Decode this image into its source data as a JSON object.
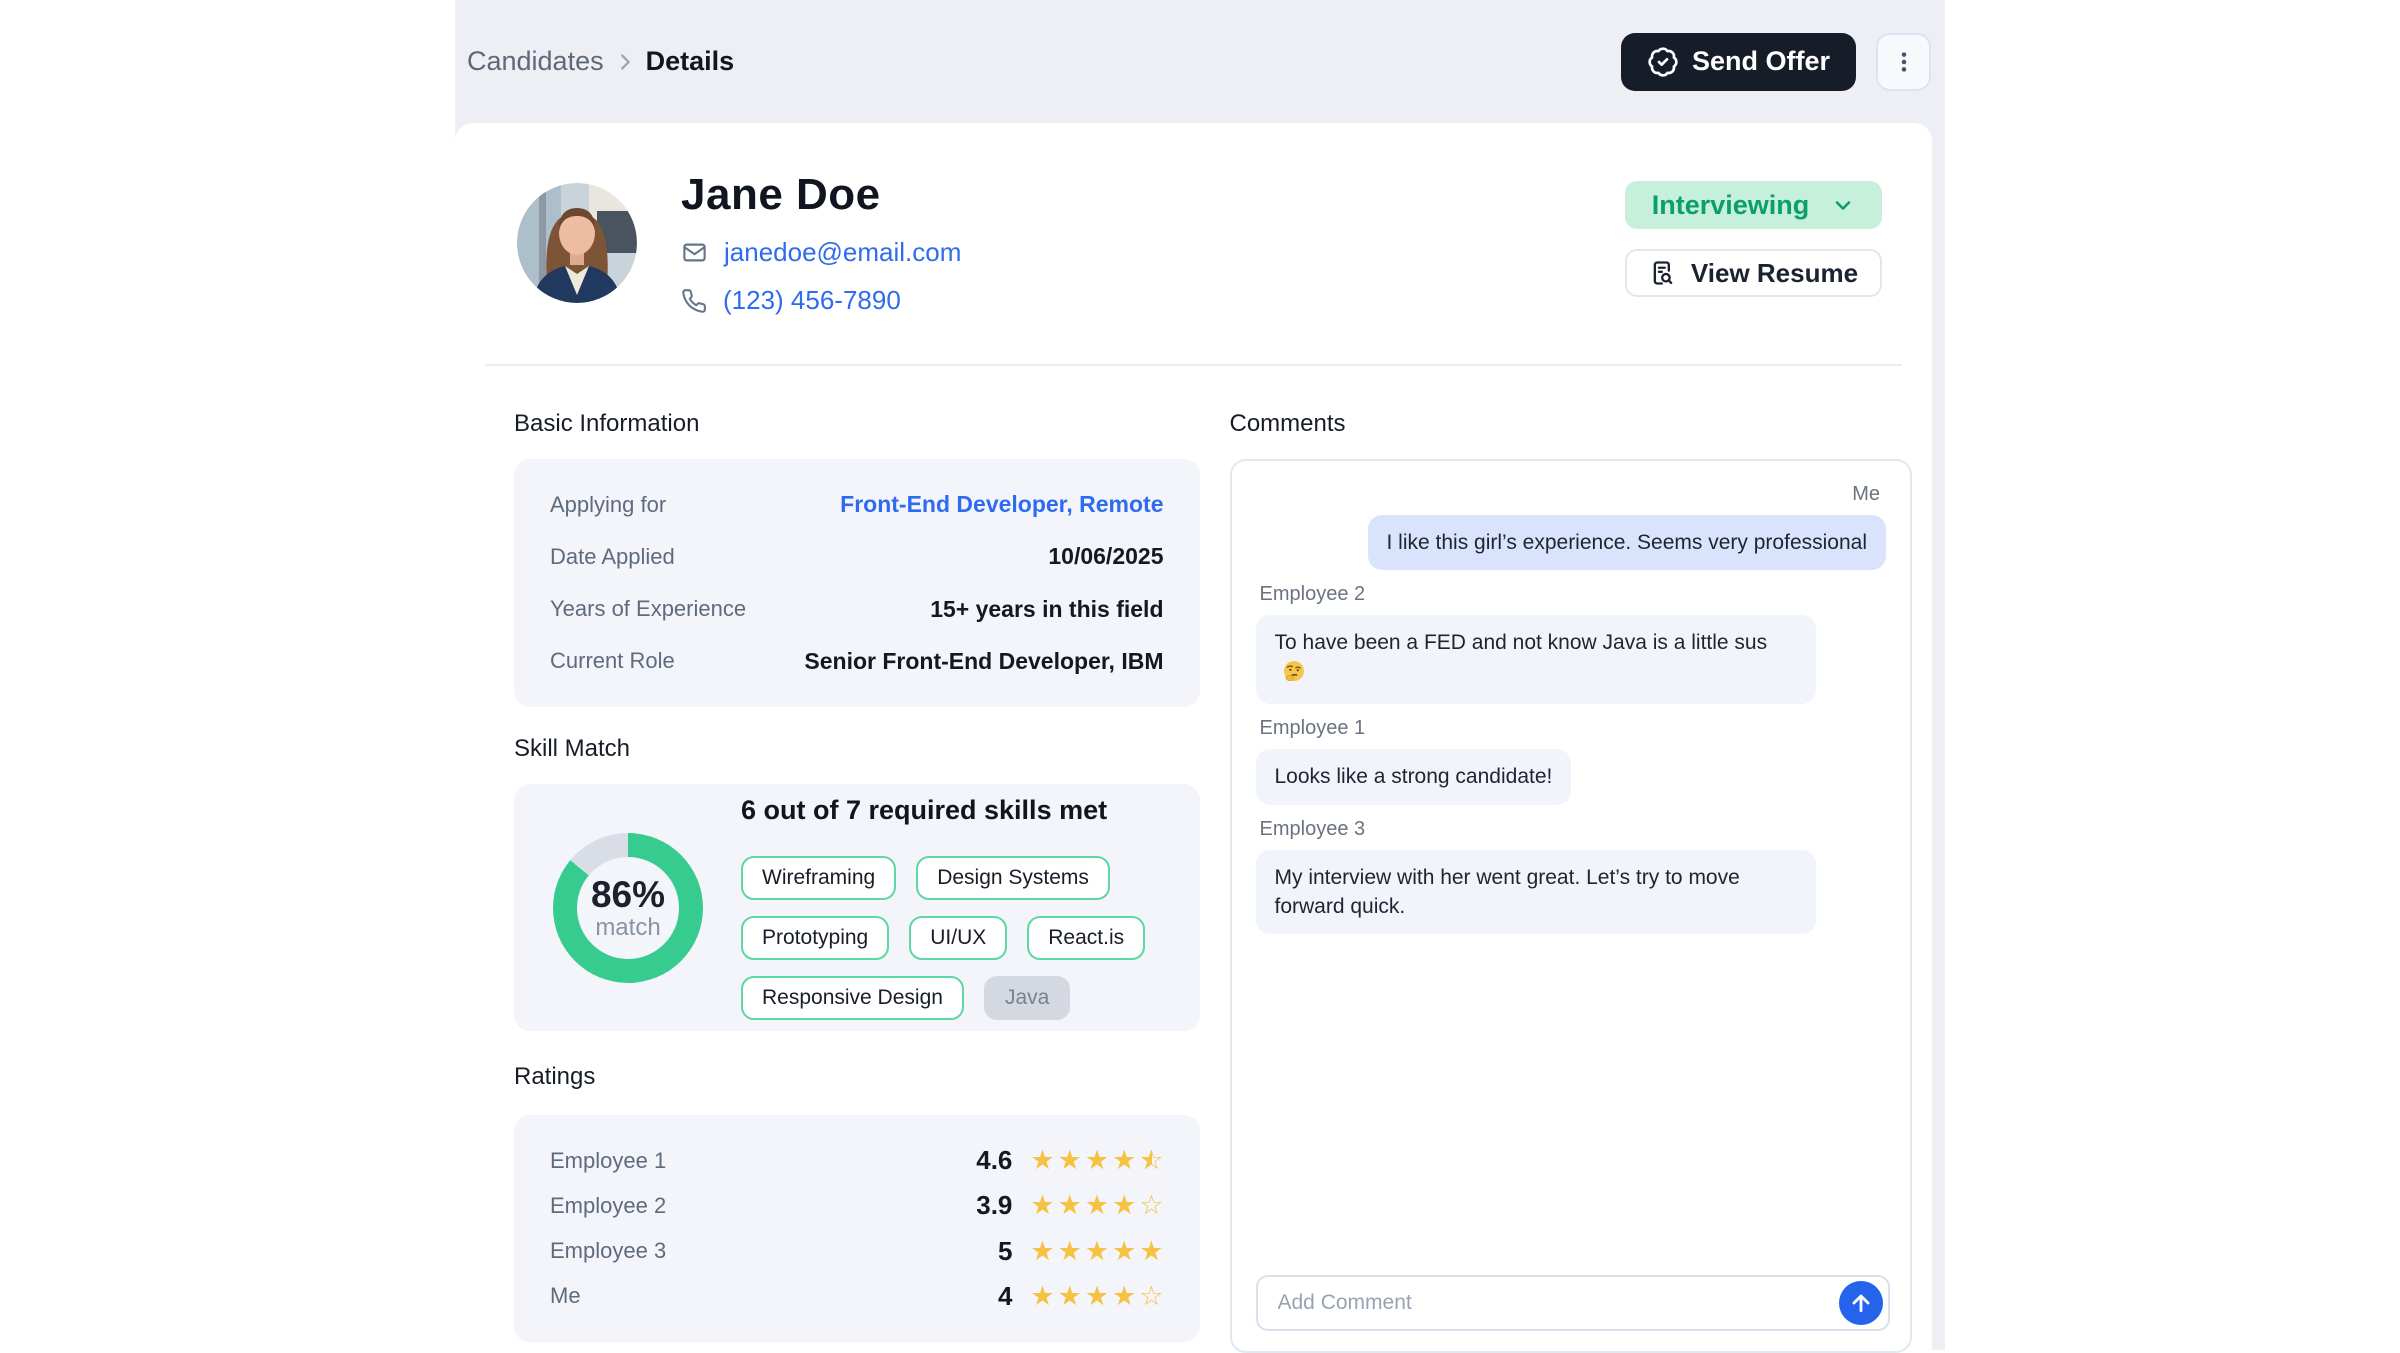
{
  "breadcrumb": {
    "parent": "Candidates",
    "current": "Details"
  },
  "topbar": {
    "send_offer_label": "Send Offer"
  },
  "profile": {
    "name": "Jane Doe",
    "email": "janedoe@email.com",
    "phone": "(123) 456-7890",
    "status_label": "Interviewing",
    "view_resume_label": "View Resume"
  },
  "basic_info": {
    "title": "Basic Information",
    "rows": [
      {
        "label": "Applying for",
        "value": "Front-End Developer, Remote",
        "is_link": true
      },
      {
        "label": "Date Applied",
        "value": "10/06/2025",
        "is_link": false
      },
      {
        "label": "Years of Experience",
        "value": "15+ years in this field",
        "is_link": false
      },
      {
        "label": "Current Role",
        "value": "Senior Front-End Developer, IBM",
        "is_link": false
      }
    ]
  },
  "skill_match": {
    "title": "Skill Match",
    "percent": 86,
    "percent_label": "86%",
    "match_label": "match",
    "headline": "6 out of 7 required skills met",
    "skills": [
      {
        "name": "Wireframing",
        "met": true
      },
      {
        "name": "Design Systems",
        "met": true
      },
      {
        "name": "Prototyping",
        "met": true
      },
      {
        "name": "UI/UX",
        "met": true
      },
      {
        "name": "React.is",
        "met": true
      },
      {
        "name": "Responsive Design",
        "met": true
      },
      {
        "name": "Java",
        "met": false
      }
    ]
  },
  "ratings": {
    "title": "Ratings",
    "rows": [
      {
        "name": "Employee 1",
        "value": "4.6",
        "stars": 4.6
      },
      {
        "name": "Employee 2",
        "value": "3.9",
        "stars": 3.9
      },
      {
        "name": "Employee 3",
        "value": "5",
        "stars": 5
      },
      {
        "name": "Me",
        "value": "4",
        "stars": 4
      }
    ]
  },
  "comments": {
    "title": "Comments",
    "messages": [
      {
        "author": "Me",
        "side": "right",
        "text": "I like this girl’s experience. Seems very professional"
      },
      {
        "author": "Employee 2",
        "side": "left",
        "text": "To have been a FED and not know Java is a little sus",
        "emoji": "thinking-face"
      },
      {
        "author": "Employee 1",
        "side": "left",
        "text": "Looks like a strong candidate!"
      },
      {
        "author": "Employee 3",
        "side": "left",
        "text": "My interview with her went great. Let’s try to move forward quick."
      }
    ],
    "input_placeholder": "Add Comment"
  },
  "colors": {
    "page_bg": "#ffffff",
    "container_bg": "#edeff4",
    "panel_bg": "#f3f5fa",
    "dark_button": "#161d29",
    "status_bg": "#c7f0dc",
    "status_text": "#0c9e6b",
    "link_blue": "#2e6bf0",
    "donut_green": "#38cb90",
    "donut_gray": "#d9dde5",
    "chip_border_green": "#5fd7a3",
    "star_amber": "#f6c244",
    "me_bubble": "#d9e4fc",
    "other_bubble": "#f1f4fa",
    "send_button_blue": "#2563eb"
  }
}
